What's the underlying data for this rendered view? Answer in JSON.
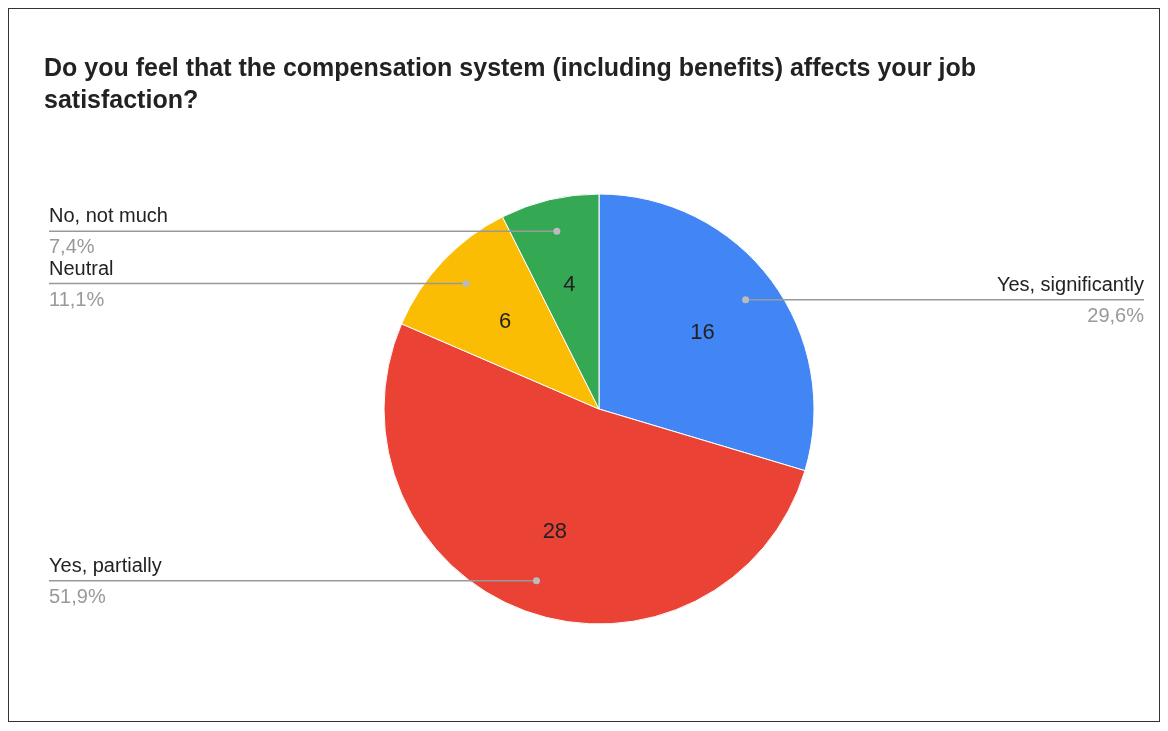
{
  "chart_data": {
    "type": "pie",
    "title": "Do you feel that the compensation system (including benefits) affects your job satisfaction?",
    "categories": [
      "Yes, significantly",
      "Yes, partially",
      "Neutral",
      "No, not much"
    ],
    "values": [
      16,
      28,
      6,
      4
    ],
    "colors": [
      "#4285f4",
      "#ea4335",
      "#fbbc04",
      "#34a853"
    ],
    "data_labels": true,
    "annotations": [
      "29,6%",
      "51,9%",
      "11,1%",
      "7,4%"
    ],
    "legend": false
  }
}
